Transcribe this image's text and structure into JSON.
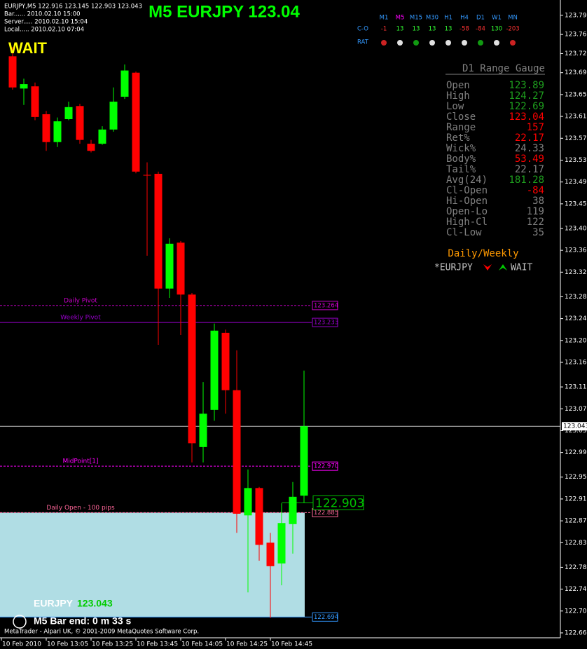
{
  "chart_data": {
    "type": "candlestick",
    "title": "M5 EURJPY 123.04",
    "status": "WAIT",
    "info_lines": [
      "EURJPY,M5  122.916 123.145 122.903 123.043",
      "Bar...... 2010.02.10 15:00",
      "Server..... 2010.02.10 15:04",
      "Local..... 2010.02.10 07:04"
    ],
    "categories": [
      "10 Feb 2010",
      null,
      null,
      null,
      "10 Feb 13:05",
      null,
      null,
      null,
      "10 Feb 13:25",
      null,
      null,
      null,
      "10 Feb 13:45",
      null,
      null,
      null,
      "10 Feb 14:05",
      null,
      null,
      null,
      "10 Feb 14:25",
      null,
      null,
      null,
      "10 Feb 14:45",
      null,
      null,
      null
    ],
    "open": [
      null,
      123.72,
      123.661,
      123.665,
      123.614,
      123.563,
      123.605,
      123.629,
      123.56,
      123.56,
      123.586,
      123.646,
      123.69,
      123.503,
      123.505,
      123.295,
      123.379,
      123.284,
      123.005,
      123.073,
      123.214,
      123.109,
      122.88,
      122.93,
      122.83,
      122.792,
      122.864,
      122.916
    ],
    "high": [
      null,
      123.737,
      123.679,
      123.672,
      123.62,
      123.608,
      123.637,
      123.633,
      123.567,
      123.592,
      123.663,
      123.705,
      123.692,
      123.526,
      123.509,
      123.387,
      123.382,
      123.287,
      123.124,
      123.231,
      123.22,
      123.182,
      122.964,
      122.932,
      122.848,
      122.902,
      122.941,
      123.145
    ],
    "low": [
      null,
      123.659,
      123.631,
      123.603,
      123.547,
      123.554,
      123.603,
      123.56,
      123.544,
      123.558,
      123.582,
      123.642,
      123.506,
      123.355,
      123.192,
      123.278,
      123.21,
      122.977,
      122.977,
      123.053,
      123.066,
      122.848,
      122.739,
      122.797,
      122.692,
      122.752,
      122.81,
      122.903
    ],
    "close": [
      null,
      123.663,
      123.669,
      123.609,
      123.563,
      123.601,
      123.627,
      123.567,
      123.547,
      123.586,
      123.637,
      123.694,
      123.509,
      123.502,
      123.295,
      123.377,
      123.284,
      123.012,
      123.066,
      123.218,
      123.109,
      122.883,
      122.93,
      122.826,
      122.787,
      122.866,
      122.914,
      123.043
    ],
    "up_color": "#00ff00",
    "down_color": "#ff0000",
    "ylim": [
      122.656,
      123.823
    ],
    "yticks": [
      122.665,
      122.705,
      122.745,
      122.785,
      {
        "value": 122.83,
        "label": "122.830"
      },
      {
        "value": 122.87,
        "label": "122.870"
      },
      {
        "value": 122.91,
        "label": "122.910"
      },
      {
        "value": 122.95,
        "label": "122.950"
      },
      122.995,
      123.035,
      123.075,
      123.115,
      {
        "value": 123.16,
        "label": "123.160"
      },
      {
        "value": 123.2,
        "label": "123.200"
      },
      {
        "value": 123.24,
        "label": "123.240"
      },
      {
        "value": 123.28,
        "label": "123.280"
      },
      123.325,
      123.365,
      123.405,
      {
        "value": 123.45,
        "label": "123.450"
      },
      {
        "value": 123.49,
        "label": "123.490"
      },
      {
        "value": 123.53,
        "label": "123.530"
      },
      {
        "value": 123.57,
        "label": "123.570"
      },
      {
        "value": 123.61,
        "label": "123.610"
      },
      {
        "value": 123.65,
        "label": "123.650"
      },
      {
        "value": 123.69,
        "label": "123.690"
      },
      123.725,
      {
        "value": 123.76,
        "label": "123.760"
      },
      123.795
    ],
    "levels": [
      {
        "name": "Daily Pivot",
        "value": 123.264,
        "color": "#cc00cc"
      },
      {
        "name": "Weekly Pivot",
        "value": 123.233,
        "color": "#9900cc"
      },
      {
        "name": "MidPoint[1]",
        "value": 122.97,
        "value_label": "122.970",
        "color": "#ff00ff"
      },
      {
        "name": "Daily Open - 100 pips",
        "value": 122.885,
        "color": "#ff6699"
      },
      {
        "value": 122.694,
        "color": "#3399ff"
      }
    ],
    "current_price": {
      "value": 123.043,
      "color": "#c0c0c0"
    },
    "price_label": {
      "value": 122.903,
      "color": "#00c000"
    },
    "zone_color": "#b0dde4"
  },
  "matrix": {
    "headers": [
      "M1",
      "M5",
      "M15",
      "M30",
      "H1",
      "H4",
      "D1",
      "W1",
      "MN"
    ],
    "header_colors": [
      "#3399ff",
      "#ff00ff",
      "#3399ff",
      "#3399ff",
      "#3399ff",
      "#3399ff",
      "#3399ff",
      "#3399ff",
      "#3399ff"
    ],
    "row_labels": [
      "C-O",
      "RAT"
    ],
    "co_values": [
      -1,
      13,
      13,
      13,
      13,
      -58,
      -84,
      130,
      -203
    ],
    "rat_colors": [
      "#cc2222",
      "#e0e0e0",
      "#119911",
      "#e0e0e0",
      "#e0e0e0",
      "#e0e0e0",
      "#119911",
      "#e0e0e0",
      "#cc2222"
    ]
  },
  "gauge": {
    "title": "D1 Range Gauge",
    "rows": [
      {
        "label": "Open",
        "value": 123.89,
        "color": "#1e9e1e"
      },
      {
        "label": "High",
        "value": 124.27,
        "color": "#1e9e1e"
      },
      {
        "label": "Low",
        "value": 122.69,
        "color": "#1e9e1e"
      },
      {
        "label": "Close",
        "value": 123.04,
        "color": "#ff0000"
      },
      {
        "label": "Range",
        "value": 157,
        "color": "#ff0000"
      },
      {
        "label": "Ret%",
        "value": 22.17,
        "color": "#ff0000"
      },
      {
        "label": "Wick%",
        "value": 24.33,
        "color": "#808080"
      },
      {
        "label": "Body%",
        "value": 53.49,
        "color": "#ff0000"
      },
      {
        "label": "Tail%",
        "value": 22.17,
        "color": "#808080"
      },
      {
        "label": "Avg(24)",
        "value": 181.28,
        "color": "#1e9e1e"
      },
      {
        "label": "Cl-Open",
        "value": -84,
        "color": "#ff0000"
      },
      {
        "label": "Hi-Open",
        "value": 38,
        "color": "#808080"
      },
      {
        "label": "Open-Lo",
        "value": 119,
        "color": "#808080"
      },
      {
        "label": "High-Cl",
        "value": 122,
        "color": "#808080"
      },
      {
        "label": "Cl-Low",
        "value": 35,
        "color": "#808080"
      }
    ],
    "daily_weekly": "Daily/Weekly",
    "symbol": "*EURJPY",
    "signal": "WAIT"
  },
  "footer": {
    "symbol": "EURJPY",
    "price": 123.043,
    "bar_end": "M5 Bar end: 0 m 33 s",
    "copyright": "MetaTrader - Alpari UK, © 2001-2009 MetaQuotes Software Corp."
  }
}
